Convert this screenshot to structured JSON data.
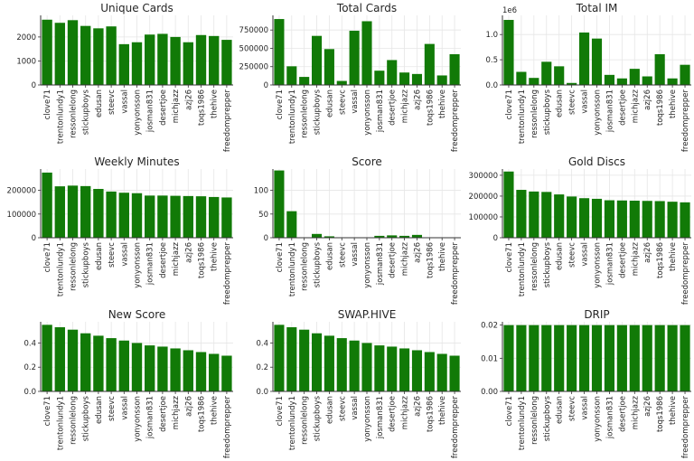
{
  "colors": {
    "bar": "#117a07",
    "grid": "#e6e6e6",
    "axis": "#333333",
    "text": "#262626"
  },
  "chart_data": [
    {
      "type": "bar",
      "title": "Unique Cards",
      "categories": [
        "clove71",
        "trentonlundy1",
        "ressonlelong",
        "stickupboys",
        "edusan",
        "steevc",
        "vassal",
        "yonyonsson",
        "josman831",
        "desertjoe",
        "michjazz",
        "azj26",
        "toqs1986",
        "thehive",
        "freedomprepper"
      ],
      "values": [
        2720,
        2590,
        2700,
        2460,
        2360,
        2440,
        1700,
        1780,
        2100,
        2130,
        2000,
        1780,
        2080,
        2040,
        1880
      ],
      "ylim": [
        0,
        2900
      ],
      "yticks": [
        0,
        1000,
        2000
      ],
      "ytick_labels": [
        "0",
        "1000",
        "2000"
      ],
      "multiplier": "",
      "grid": true,
      "show_xlabels": true
    },
    {
      "type": "bar",
      "title": "Total Cards",
      "categories": [
        "clove71",
        "trentonlundy1",
        "ressonlelong",
        "stickupboys",
        "edusan",
        "steevc",
        "vassal",
        "yonyonsson",
        "josman831",
        "desertjoe",
        "michjazz",
        "azj26",
        "toqs1986",
        "thehive",
        "freedomprepper"
      ],
      "values": [
        900000,
        255000,
        110000,
        670000,
        490000,
        55000,
        740000,
        870000,
        195000,
        340000,
        170000,
        150000,
        560000,
        130000,
        420000
      ],
      "ylim": [
        0,
        950000
      ],
      "yticks": [
        0,
        250000,
        500000,
        750000
      ],
      "ytick_labels": [
        "0",
        "250000",
        "500000",
        "750000"
      ],
      "multiplier": "",
      "grid": true,
      "show_xlabels": true
    },
    {
      "type": "bar",
      "title": "Total IM",
      "categories": [
        "clove71",
        "trentonlundy1",
        "ressonlelong",
        "stickupboys",
        "edusan",
        "steevc",
        "vassal",
        "yonyonsson",
        "josman831",
        "desertjoe",
        "michjazz",
        "azj26",
        "toqs1986",
        "thehive",
        "freedomprepper"
      ],
      "values": [
        1290000,
        260000,
        140000,
        460000,
        370000,
        40000,
        1040000,
        920000,
        200000,
        130000,
        320000,
        170000,
        610000,
        130000,
        400000
      ],
      "ylim": [
        0,
        1380000
      ],
      "yticks": [
        0,
        500000,
        1000000
      ],
      "ytick_labels": [
        "0.0",
        "0.5",
        "1.0"
      ],
      "multiplier": "1e6",
      "grid": true,
      "show_xlabels": true
    },
    {
      "type": "bar",
      "title": "Weekly Minutes",
      "categories": [
        "clove71",
        "trentonlundy1",
        "ressonlelong",
        "stickupboys",
        "edusan",
        "steevc",
        "vassal",
        "yonyonsson",
        "josman831",
        "desertjoe",
        "michjazz",
        "azj26",
        "toqs1986",
        "thehive",
        "freedomprepper"
      ],
      "values": [
        275000,
        217000,
        220000,
        218000,
        206000,
        195000,
        190000,
        188000,
        178000,
        178000,
        177000,
        176000,
        175000,
        172000,
        170000
      ],
      "ylim": [
        0,
        290000
      ],
      "yticks": [
        0,
        100000,
        200000
      ],
      "ytick_labels": [
        "0",
        "100000",
        "200000"
      ],
      "multiplier": "",
      "grid": true,
      "show_xlabels": true
    },
    {
      "type": "bar",
      "title": "Score",
      "categories": [
        "clove71",
        "trentonlundy1",
        "ressonlelong",
        "stickupboys",
        "edusan",
        "steevc",
        "vassal",
        "yonyonsson",
        "josman831",
        "desertjoe",
        "michjazz",
        "azj26",
        "toqs1986",
        "thehive",
        "freedomprepper"
      ],
      "values": [
        142,
        56,
        0.5,
        8,
        3,
        0.5,
        0.5,
        0.3,
        4,
        5,
        4,
        6,
        0.5,
        0.3,
        0.3
      ],
      "ylim": [
        0,
        145
      ],
      "yticks": [
        0,
        50,
        100
      ],
      "ytick_labels": [
        "0",
        "50",
        "100"
      ],
      "multiplier": "",
      "grid": true,
      "show_xlabels": true
    },
    {
      "type": "bar",
      "title": "Gold Discs",
      "categories": [
        "clove71",
        "trentonlundy1",
        "ressonlelong",
        "stickupboys",
        "edusan",
        "steevc",
        "vassal",
        "yonyonsson",
        "josman831",
        "desertjoe",
        "michjazz",
        "azj26",
        "toqs1986",
        "thehive",
        "freedomprepper"
      ],
      "values": [
        318000,
        230000,
        222000,
        220000,
        208000,
        198000,
        190000,
        187000,
        180000,
        179000,
        178000,
        177000,
        176000,
        173000,
        170000
      ],
      "ylim": [
        0,
        330000
      ],
      "yticks": [
        0,
        100000,
        200000,
        300000
      ],
      "ytick_labels": [
        "0",
        "100000",
        "200000",
        "300000"
      ],
      "multiplier": "",
      "grid": true,
      "show_xlabels": true
    },
    {
      "type": "bar",
      "title": "New Score",
      "categories": [
        "clove71",
        "trentonlundy1",
        "ressonlelong",
        "stickupboys",
        "edusan",
        "steevc",
        "vassal",
        "yonyonsson",
        "josman831",
        "desertjoe",
        "michjazz",
        "azj26",
        "toqs1986",
        "thehive",
        "freedomprepper"
      ],
      "values": [
        0.55,
        0.53,
        0.51,
        0.48,
        0.46,
        0.44,
        0.42,
        0.4,
        0.38,
        0.37,
        0.355,
        0.34,
        0.325,
        0.31,
        0.295
      ],
      "ylim": [
        0,
        0.575
      ],
      "yticks": [
        0,
        0.2,
        0.4
      ],
      "ytick_labels": [
        "0.0",
        "0.2",
        "0.4"
      ],
      "multiplier": "",
      "grid": true,
      "show_xlabels": true
    },
    {
      "type": "bar",
      "title": "SWAP.HIVE",
      "categories": [
        "clove71",
        "trentonlundy1",
        "ressonlelong",
        "stickupboys",
        "edusan",
        "steevc",
        "vassal",
        "yonyonsson",
        "josman831",
        "desertjoe",
        "michjazz",
        "azj26",
        "toqs1986",
        "thehive",
        "freedomprepper"
      ],
      "values": [
        0.55,
        0.53,
        0.51,
        0.48,
        0.46,
        0.44,
        0.42,
        0.4,
        0.38,
        0.37,
        0.355,
        0.34,
        0.325,
        0.31,
        0.295
      ],
      "ylim": [
        0,
        0.575
      ],
      "yticks": [
        0,
        0.2,
        0.4
      ],
      "ytick_labels": [
        "0.0",
        "0.2",
        "0.4"
      ],
      "multiplier": "",
      "grid": true,
      "show_xlabels": true
    },
    {
      "type": "bar",
      "title": "DRIP",
      "categories": [
        "clove71",
        "trentonlundy1",
        "ressonlelong",
        "stickupboys",
        "edusan",
        "steevc",
        "vassal",
        "yonyonsson",
        "josman831",
        "desertjoe",
        "michjazz",
        "azj26",
        "toqs1986",
        "thehive",
        "freedomprepper"
      ],
      "values": [
        0.02,
        0.02,
        0.02,
        0.02,
        0.02,
        0.02,
        0.02,
        0.02,
        0.02,
        0.02,
        0.02,
        0.02,
        0.02,
        0.02,
        0.02
      ],
      "ylim": [
        0,
        0.021
      ],
      "yticks": [
        0,
        0.01,
        0.02
      ],
      "ytick_labels": [
        "0.00",
        "0.01",
        "0.02"
      ],
      "multiplier": "",
      "grid": true,
      "show_xlabels": true
    }
  ]
}
